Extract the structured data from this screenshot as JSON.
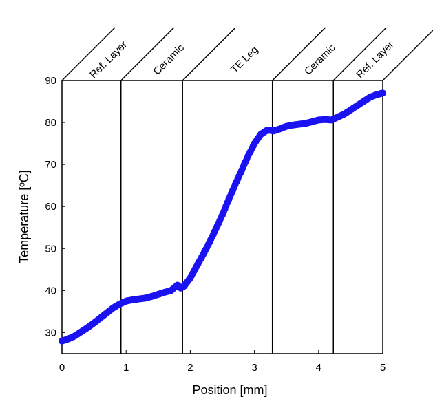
{
  "chart_data": {
    "type": "scatter",
    "xlabel": "Position [mm]",
    "ylabel": "Temperature [ºC]",
    "xlim": [
      0,
      5
    ],
    "ylim": [
      25,
      90
    ],
    "x_ticks": [
      0,
      1,
      2,
      3,
      4,
      5
    ],
    "y_ticks": [
      30,
      40,
      50,
      60,
      70,
      80,
      90
    ],
    "grid": false,
    "marker_color": "#1a12f0",
    "region_boundaries": [
      0.92,
      1.88,
      3.28,
      4.23
    ],
    "regions": [
      {
        "label": "Ref. Layer",
        "x_start": 0,
        "x_end": 0.92
      },
      {
        "label": "Ceramic",
        "x_start": 0.92,
        "x_end": 1.88
      },
      {
        "label": "TE Leg",
        "x_start": 1.88,
        "x_end": 3.28
      },
      {
        "label": "Ceramic",
        "x_start": 3.28,
        "x_end": 4.23
      },
      {
        "label": "Ref. Layer",
        "x_start": 4.23,
        "x_end": 5
      }
    ],
    "series": [
      {
        "x": [
          0,
          0.1,
          0.2,
          0.3,
          0.4,
          0.5,
          0.6,
          0.7,
          0.8,
          0.9,
          1.0,
          1.1,
          1.2,
          1.3,
          1.4,
          1.5,
          1.6,
          1.7,
          1.8,
          1.85,
          1.9,
          2.0,
          2.1,
          2.2,
          2.3,
          2.4,
          2.5,
          2.6,
          2.7,
          2.8,
          2.9,
          3.0,
          3.1,
          3.2,
          3.3,
          3.4,
          3.5,
          3.6,
          3.7,
          3.8,
          3.9,
          4.0,
          4.1,
          4.2,
          4.3,
          4.4,
          4.5,
          4.6,
          4.7,
          4.8,
          4.9,
          5.0
        ],
        "values": [
          28,
          28.5,
          29.2,
          30.2,
          31.2,
          32.3,
          33.5,
          34.7,
          35.9,
          36.8,
          37.5,
          37.8,
          38.0,
          38.2,
          38.6,
          39.1,
          39.6,
          40.0,
          41.3,
          40.6,
          41.0,
          43.0,
          45.8,
          48.6,
          51.5,
          54.7,
          58.0,
          61.7,
          65.2,
          68.6,
          72.0,
          75.0,
          77.2,
          78.2,
          78.0,
          78.5,
          79.1,
          79.4,
          79.6,
          79.8,
          80.2,
          80.6,
          80.7,
          80.6,
          81.3,
          82.0,
          83.0,
          84.0,
          85.0,
          86.0,
          86.6,
          87.0
        ]
      }
    ]
  }
}
